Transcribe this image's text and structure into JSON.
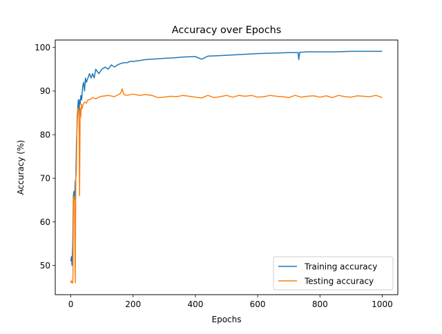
{
  "chart_data": {
    "type": "line",
    "title": "Accuracy over Epochs",
    "xlabel": "Epochs",
    "ylabel": "Accuracy (%)",
    "xlim": [
      -50,
      1050
    ],
    "ylim": [
      43.3,
      101.7
    ],
    "x_ticks": [
      0,
      200,
      400,
      600,
      800,
      1000
    ],
    "y_ticks": [
      50,
      60,
      70,
      80,
      90,
      100
    ],
    "x_tick_labels": [
      "0",
      "200",
      "400",
      "600",
      "800",
      "1000"
    ],
    "y_tick_labels": [
      "50",
      "60",
      "70",
      "80",
      "90",
      "100"
    ],
    "legend_position": "lower-right",
    "grid": false,
    "series": [
      {
        "name": "Training accuracy",
        "color": "#1f77b4",
        "x": [
          0,
          2,
          4,
          6,
          8,
          10,
          12,
          14,
          16,
          18,
          20,
          22,
          24,
          26,
          28,
          30,
          32,
          35,
          38,
          41,
          44,
          47,
          50,
          55,
          60,
          65,
          70,
          75,
          80,
          90,
          100,
          110,
          120,
          130,
          140,
          150,
          160,
          170,
          180,
          190,
          200,
          220,
          240,
          260,
          280,
          300,
          330,
          360,
          400,
          420,
          440,
          470,
          500,
          550,
          600,
          650,
          700,
          730,
          732,
          735,
          760,
          800,
          850,
          900,
          950,
          1000
        ],
        "y": [
          51,
          52,
          50,
          55,
          66,
          67,
          65,
          69,
          70,
          78,
          82,
          86,
          88,
          84,
          88,
          87,
          89,
          88,
          91,
          92,
          90,
          93,
          92,
          93,
          94,
          93,
          94,
          93,
          95,
          94,
          95,
          95.5,
          95,
          96,
          95.5,
          96,
          96.3,
          96.5,
          96.5,
          96.8,
          96.8,
          97,
          97.2,
          97.3,
          97.4,
          97.5,
          97.6,
          97.8,
          97.9,
          97.3,
          98,
          98.1,
          98.2,
          98.4,
          98.6,
          98.7,
          98.8,
          98.8,
          97.2,
          98.9,
          99,
          99,
          99,
          99.1,
          99.1,
          99.1
        ]
      },
      {
        "name": "Testing accuracy",
        "color": "#ff7f0e",
        "x": [
          0,
          2,
          4,
          6,
          7,
          8,
          10,
          12,
          14,
          16,
          18,
          20,
          22,
          24,
          26,
          28,
          30,
          32,
          34,
          36,
          38,
          40,
          45,
          50,
          55,
          60,
          70,
          80,
          90,
          100,
          120,
          140,
          160,
          165,
          170,
          180,
          200,
          220,
          240,
          260,
          280,
          300,
          320,
          340,
          360,
          380,
          400,
          420,
          440,
          460,
          480,
          500,
          520,
          540,
          560,
          580,
          600,
          620,
          640,
          660,
          680,
          700,
          720,
          740,
          760,
          780,
          800,
          820,
          840,
          860,
          880,
          900,
          920,
          940,
          960,
          980,
          1000
        ],
        "y": [
          46,
          46.5,
          46,
          46,
          48,
          65,
          66,
          64,
          46,
          70,
          72,
          84,
          86,
          86,
          85.5,
          66,
          86,
          84,
          87,
          86,
          86.5,
          87,
          87.5,
          87.2,
          88,
          88,
          88.5,
          88.2,
          88.6,
          88.8,
          89,
          88.7,
          89.5,
          90.5,
          89.2,
          89,
          89.3,
          89,
          89.2,
          89,
          88.5,
          88.6,
          88.8,
          88.7,
          89,
          88.8,
          88.6,
          88.4,
          89,
          88.5,
          88.7,
          89,
          88.6,
          89,
          88.8,
          89,
          88.6,
          88.7,
          89,
          88.8,
          88.7,
          88.5,
          89,
          88.6,
          88.8,
          88.9,
          88.6,
          88.9,
          88.5,
          89,
          88.7,
          88.6,
          88.9,
          88.8,
          88.7,
          89,
          88.5
        ]
      }
    ]
  }
}
